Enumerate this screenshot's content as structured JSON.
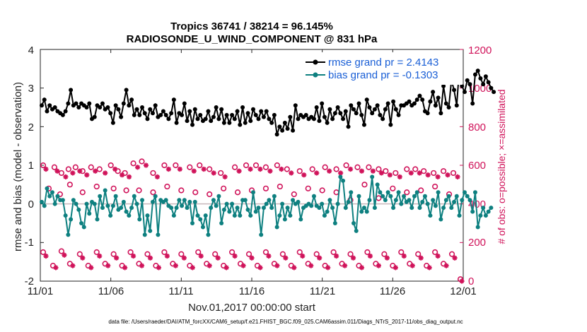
{
  "chart_data": {
    "type": "line",
    "title": "Tropics 36741 / 38214 = 96.145%",
    "subtitle": "RADIOSONDE_U_WIND_COMPONENT @ 831 hPa",
    "xlabel": "Nov.01,2017 00:00:00 start",
    "ylabel": "rmse and bias (model - observation)",
    "ylabel_right": "# of obs: o=possible; ×=assimilated",
    "ylim": [
      -2,
      4
    ],
    "ylim_right": [
      0,
      1200
    ],
    "xlim": [
      0,
      30
    ],
    "x_ticks": [
      0,
      5,
      10,
      15,
      20,
      25,
      30
    ],
    "x_tick_labels": [
      "11/01",
      "11/06",
      "11/11",
      "11/16",
      "11/21",
      "11/26",
      "12/01"
    ],
    "y_tick_labels": [
      "-2",
      "-1",
      "0",
      "1",
      "2",
      "3",
      "4"
    ],
    "y_tick_labels_right": [
      "0",
      "200",
      "400",
      "600",
      "800",
      "1000",
      "1200"
    ],
    "legend": [
      "rmse grand pr = 2.4143",
      "bias grand pr = -0.1303"
    ],
    "footnote": "data file: /Users/raeder/DAI/ATM_forcXX/CAM6_setup/f.e21.FHIST_BGC.f09_025.CAM6assim.011/Diags_NTrS_2017-11/obs_diag_output.nc",
    "series": [
      {
        "name": "rmse",
        "color": "#000000",
        "values": [
          2.55,
          2.7,
          2.4,
          2.55,
          2.45,
          2.5,
          2.4,
          2.35,
          2.3,
          2.4,
          2.6,
          2.95,
          2.55,
          2.6,
          2.5,
          2.6,
          2.55,
          2.5,
          2.6,
          2.2,
          2.25,
          2.55,
          2.5,
          2.6,
          2.45,
          2.5,
          2.35,
          2.1,
          2.55,
          2.45,
          2.25,
          2.6,
          2.95,
          2.55,
          2.7,
          2.3,
          2.45,
          2.3,
          2.5,
          2.35,
          2.2,
          2.45,
          2.35,
          2.55,
          2.25,
          2.3,
          2.4,
          2.3,
          2.2,
          2.35,
          2.7,
          2.1,
          2.35,
          2.3,
          2.6,
          2.15,
          2.4,
          2.05,
          2.45,
          2.2,
          2.3,
          2.15,
          2.2,
          2.4,
          2.15,
          2.25,
          2.5,
          2.2,
          2.45,
          2.1,
          2.3,
          2.1,
          2.3,
          2.2,
          2.4,
          2.05,
          2.5,
          2.1,
          2.35,
          2.15,
          2.45,
          2.3,
          2.2,
          2.4,
          2.25,
          2.4,
          2.2,
          2.1,
          2.3,
          1.8,
          2.0,
          1.9,
          2.1,
          1.95,
          2.25,
          1.9,
          2.55,
          2.2,
          2.3,
          2.25,
          2.3,
          2.2,
          2.25,
          2.2,
          2.5,
          2.15,
          2.6,
          2.25,
          2.1,
          2.45,
          2.2,
          2.35,
          2.5,
          2.35,
          2.2,
          2.4,
          2.0,
          2.55,
          2.45,
          2.35,
          2.6,
          2.3,
          2.05,
          2.7,
          2.5,
          2.35,
          2.45,
          2.55,
          2.3,
          2.2,
          2.45,
          2.6,
          2.05,
          2.65,
          2.45,
          2.3,
          2.55,
          2.55,
          2.6,
          2.65,
          2.55,
          2.6,
          2.7,
          2.8,
          2.7,
          2.4,
          2.35,
          2.65,
          2.9,
          2.55,
          2.75,
          2.35,
          3.05,
          2.6,
          2.5,
          3.2,
          2.95,
          2.55,
          3.5,
          3.05,
          2.9,
          3.2,
          3.1,
          2.6,
          3.35,
          3.45,
          3.25,
          3.1,
          3.3,
          3.15,
          3.0,
          2.9
        ],
        "x_start": 0.1,
        "x_step": 0.1875
      },
      {
        "name": "bias",
        "color": "#0e8080",
        "values": [
          0.05,
          -0.05,
          0.4,
          0.2,
          0.3,
          0.0,
          0.2,
          0.1,
          0.1,
          -0.3,
          -0.8,
          -0.4,
          0.1,
          0.0,
          -0.15,
          -0.5,
          -0.6,
          0.0,
          -0.25,
          0.05,
          0.0,
          -0.4,
          0.2,
          -0.1,
          0.35,
          -0.05,
          -0.3,
          -0.05,
          0.2,
          -0.15,
          -0.1,
          0.05,
          -0.2,
          -0.3,
          -0.1,
          0.2,
          0.0,
          -0.4,
          0.1,
          -0.8,
          -0.3,
          -0.7,
          0.05,
          0.2,
          -0.8,
          0.1,
          0.05,
          0.1,
          -0.05,
          -0.1,
          -0.3,
          -0.1,
          0.1,
          -0.05,
          0.1,
          -0.1,
          0.05,
          -0.5,
          0.05,
          -0.3,
          -0.4,
          -0.6,
          -0.3,
          -0.8,
          -0.1,
          0.1,
          -0.05,
          0.2,
          -0.5,
          -0.15,
          0.0,
          -0.2,
          0.0,
          -0.3,
          -0.1,
          -0.3,
          0.1,
          0.1,
          -0.15,
          -0.3,
          0.3,
          -0.2,
          -0.1,
          -0.8,
          -0.1,
          0.0,
          0.1,
          -0.1,
          0.2,
          -0.6,
          -0.3,
          0.0,
          -0.4,
          -0.1,
          -0.3,
          0.1,
          0.0,
          0.05,
          -0.4,
          -0.1,
          -0.05,
          0.0,
          -0.05,
          0.2,
          -0.05,
          -0.1,
          0.0,
          -0.3,
          -0.2,
          0.1,
          -0.1,
          -0.5,
          0.0,
          0.7,
          0.6,
          -0.1,
          0.05,
          0.3,
          -0.5,
          -0.7,
          0.2,
          -0.2,
          -0.1,
          -0.2,
          0.1,
          0.7,
          -0.1,
          0.5,
          0.3,
          0.2,
          0.1,
          0.3,
          0.2,
          -0.1,
          0.1,
          0.3,
          0.0,
          0.2,
          0.05,
          0.1,
          -0.1,
          0.2,
          0.3,
          -0.1,
          0.05,
          0.2,
          0.0,
          -0.3,
          0.1,
          -0.05,
          0.3,
          -0.4,
          -0.1,
          0.1,
          0.2,
          -0.1,
          0.05,
          0.2,
          -0.3,
          0.1,
          0.3,
          0.2,
          0.1,
          -0.2,
          0.3,
          -0.6,
          -0.3,
          -0.1,
          -0.3,
          -0.2,
          -0.1
        ],
        "x_start": 0.1,
        "x_step": 0.1875
      },
      {
        "name": "obs possible (upper)",
        "color": "#d0135a",
        "x": [
          0.2,
          1.0,
          1.5,
          2.0,
          2.5,
          3.0,
          3.6,
          4.2,
          5.0,
          5.5,
          6.0,
          6.6,
          7.2,
          8.0,
          8.8,
          9.6,
          10.6,
          11.3,
          12.0,
          12.8,
          13.8,
          14.6,
          15.3,
          16.0,
          16.8,
          17.5,
          18.4,
          19.3,
          20.2,
          21.0,
          21.7,
          22.5,
          23.3,
          24.0,
          24.5,
          25.2,
          26.0,
          26.6,
          27.2,
          27.9,
          28.6,
          29.3
        ],
        "values": [
          600,
          590,
          560,
          580,
          590,
          570,
          590,
          580,
          600,
          570,
          560,
          610,
          620,
          560,
          600,
          600,
          590,
          600,
          580,
          560,
          590,
          600,
          600,
          590,
          600,
          580,
          570,
          580,
          590,
          580,
          600,
          590,
          590,
          580,
          570,
          560,
          580,
          580,
          570,
          560,
          570,
          560
        ]
      },
      {
        "name": "obs assimilated (upper)",
        "color": "#d0135a",
        "x": [
          0.4,
          1.2,
          1.8,
          2.3,
          2.8,
          3.3,
          3.9,
          4.6,
          5.3,
          5.8,
          6.3,
          6.9,
          7.5,
          8.3,
          9.1,
          9.9,
          10.9,
          11.6,
          12.3,
          13.1,
          14.1,
          14.9,
          15.6,
          16.3,
          17.1,
          17.8,
          18.7,
          19.6,
          20.5,
          21.3,
          22.0,
          22.8,
          23.6,
          24.2,
          24.8,
          25.5,
          26.3,
          26.9,
          27.5,
          28.2,
          28.9,
          29.6
        ],
        "values": [
          580,
          570,
          540,
          560,
          570,
          550,
          570,
          560,
          580,
          550,
          540,
          590,
          600,
          540,
          580,
          580,
          570,
          580,
          560,
          540,
          570,
          580,
          580,
          570,
          580,
          560,
          550,
          560,
          570,
          560,
          580,
          570,
          570,
          560,
          550,
          540,
          560,
          560,
          550,
          540,
          550,
          540
        ]
      },
      {
        "name": "obs possible (mid)",
        "color": "#d0135a",
        "x": [
          0.6,
          1.4,
          2.1,
          3.0,
          4.0,
          5.2,
          6.1,
          7.0,
          8.0,
          9.0,
          10.0,
          11.0,
          12.0,
          13.0,
          14.0,
          15.0,
          16.0,
          17.0,
          18.0,
          19.0,
          20.0,
          21.0,
          22.0,
          23.0,
          24.0,
          25.0,
          26.0,
          27.0,
          28.0,
          29.0
        ],
        "values": [
          480,
          450,
          500,
          460,
          490,
          480,
          470,
          470,
          460,
          490,
          470,
          460,
          450,
          480,
          460,
          470,
          480,
          490,
          450,
          480,
          470,
          460,
          420,
          500,
          430,
          480,
          460,
          470,
          490,
          450
        ]
      },
      {
        "name": "obs possible (lower)",
        "color": "#d0135a",
        "x": [
          0.2,
          0.9,
          1.5,
          2.1,
          2.8,
          3.4,
          4.0,
          4.6,
          5.2,
          5.8,
          6.4,
          7.0,
          7.6,
          8.2,
          8.8,
          9.4,
          10.0,
          10.6,
          11.2,
          11.8,
          12.4,
          13.0,
          13.6,
          14.2,
          14.8,
          15.4,
          16.0,
          16.6,
          17.2,
          17.8,
          18.4,
          19.0,
          19.6,
          20.2,
          20.8,
          21.4,
          22.0,
          22.6,
          23.2,
          23.8,
          24.4,
          25.0,
          25.6,
          26.2,
          26.8,
          27.4,
          28.0,
          28.6,
          29.2,
          29.8
        ],
        "values": [
          150,
          80,
          155,
          90,
          140,
          80,
          150,
          90,
          140,
          80,
          150,
          90,
          140,
          80,
          150,
          90,
          140,
          80,
          150,
          90,
          140,
          80,
          150,
          90,
          140,
          80,
          150,
          90,
          140,
          80,
          150,
          90,
          140,
          80,
          150,
          90,
          140,
          80,
          150,
          90,
          140,
          80,
          150,
          90,
          140,
          80,
          150,
          90,
          140,
          10
        ]
      },
      {
        "name": "obs assimilated (lower)",
        "color": "#d0135a",
        "x": [
          0.4,
          1.1,
          1.7,
          2.3,
          3.0,
          3.6,
          4.2,
          4.8,
          5.4,
          6.0,
          6.6,
          7.2,
          7.8,
          8.4,
          9.0,
          9.6,
          10.2,
          10.8,
          11.4,
          12.0,
          12.6,
          13.2,
          13.8,
          14.4,
          15.0,
          15.6,
          16.2,
          16.8,
          17.4,
          18.0,
          18.6,
          19.2,
          19.8,
          20.4,
          21.0,
          21.6,
          22.2,
          22.8,
          23.4,
          24.0,
          24.6,
          25.2,
          25.8,
          26.4,
          27.0,
          27.6,
          28.2,
          28.8,
          29.4,
          29.9
        ],
        "values": [
          130,
          70,
          135,
          80,
          120,
          70,
          130,
          80,
          120,
          70,
          130,
          80,
          120,
          70,
          130,
          80,
          120,
          70,
          130,
          80,
          120,
          70,
          130,
          80,
          120,
          70,
          130,
          80,
          120,
          70,
          130,
          80,
          120,
          70,
          130,
          80,
          120,
          70,
          130,
          80,
          120,
          70,
          130,
          80,
          120,
          70,
          130,
          80,
          120,
          0
        ]
      }
    ]
  }
}
